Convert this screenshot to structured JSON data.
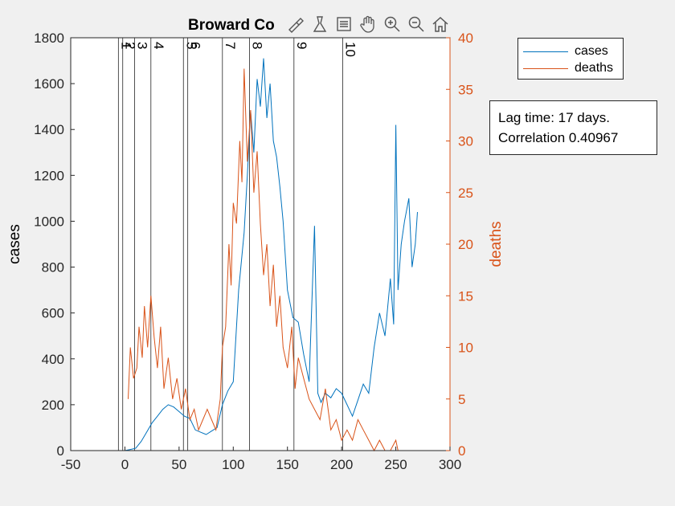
{
  "chart_data": {
    "type": "line",
    "title": "Broward Co",
    "xlim": [
      -50,
      300
    ],
    "ylim_left": [
      0,
      1800
    ],
    "ylim_right": [
      0,
      40
    ],
    "xticks": [
      -50,
      0,
      50,
      100,
      150,
      200,
      250,
      300
    ],
    "yticks_left": [
      0,
      200,
      400,
      600,
      800,
      1000,
      1200,
      1400,
      1600,
      1800
    ],
    "yticks_right": [
      0,
      5,
      10,
      15,
      20,
      25,
      30,
      35,
      40
    ],
    "ylabel_left": "cases",
    "ylabel_right": "deaths",
    "legend_position": "top-right outside",
    "grid": false,
    "colors": {
      "cases": "#0072bd",
      "deaths": "#d95319",
      "axis_right": "#d95319"
    },
    "event_lines": [
      {
        "label": "1",
        "x": -6
      },
      {
        "label": "2",
        "x": -2
      },
      {
        "label": "3",
        "x": 9
      },
      {
        "label": "4",
        "x": 24
      },
      {
        "label": "5",
        "x": 54
      },
      {
        "label": "6",
        "x": 58
      },
      {
        "label": "7",
        "x": 90
      },
      {
        "label": "8",
        "x": 115
      },
      {
        "label": "9",
        "x": 156
      },
      {
        "label": "10",
        "x": 201
      }
    ],
    "series": [
      {
        "name": "cases",
        "axis": "left",
        "x": [
          0,
          5,
          10,
          15,
          20,
          25,
          30,
          35,
          40,
          45,
          50,
          55,
          60,
          65,
          70,
          75,
          80,
          85,
          90,
          95,
          100,
          105,
          110,
          113,
          116,
          119,
          122,
          125,
          128,
          131,
          134,
          137,
          140,
          143,
          146,
          150,
          155,
          160,
          165,
          170,
          175,
          178,
          181,
          185,
          190,
          195,
          200,
          205,
          210,
          215,
          220,
          225,
          230,
          235,
          240,
          245,
          248,
          250,
          252,
          255,
          258,
          262,
          265,
          268,
          270
        ],
        "y": [
          0,
          5,
          10,
          40,
          80,
          120,
          150,
          180,
          200,
          190,
          170,
          150,
          140,
          90,
          80,
          70,
          85,
          100,
          200,
          260,
          300,
          700,
          950,
          1200,
          1480,
          1300,
          1620,
          1500,
          1710,
          1450,
          1600,
          1350,
          1280,
          1150,
          1000,
          700,
          580,
          560,
          420,
          300,
          980,
          250,
          210,
          250,
          230,
          270,
          250,
          200,
          150,
          220,
          290,
          250,
          450,
          600,
          500,
          750,
          550,
          1420,
          700,
          900,
          1000,
          1100,
          800,
          900,
          1040
        ]
      },
      {
        "name": "deaths",
        "axis": "right",
        "x": [
          3,
          5,
          8,
          11,
          13,
          16,
          18,
          21,
          24,
          27,
          30,
          33,
          36,
          40,
          44,
          48,
          52,
          56,
          60,
          64,
          68,
          72,
          76,
          80,
          84,
          88,
          90,
          93,
          96,
          98,
          100,
          103,
          106,
          108,
          110,
          113,
          116,
          119,
          122,
          125,
          128,
          131,
          134,
          137,
          140,
          143,
          146,
          150,
          154,
          157,
          160,
          165,
          170,
          175,
          180,
          185,
          190,
          195,
          200,
          205,
          210,
          215,
          220,
          225,
          230,
          235,
          240,
          245,
          250,
          252
        ],
        "y": [
          5,
          10,
          7,
          8,
          12,
          9,
          14,
          10,
          15,
          11,
          8,
          12,
          6,
          9,
          5,
          7,
          4,
          6,
          3,
          4,
          2,
          3,
          4,
          3,
          2,
          5,
          10,
          12,
          20,
          16,
          24,
          22,
          30,
          26,
          37,
          28,
          33,
          25,
          29,
          22,
          17,
          20,
          14,
          18,
          12,
          15,
          10,
          8,
          12,
          6,
          9,
          7,
          5,
          4,
          3,
          6,
          2,
          3,
          1,
          2,
          1,
          3,
          2,
          1,
          0,
          1,
          0,
          0,
          1,
          0
        ]
      }
    ]
  },
  "legend": {
    "entries": [
      {
        "label": "cases",
        "color": "#0072bd"
      },
      {
        "label": "deaths",
        "color": "#d95319"
      }
    ]
  },
  "annotation": {
    "line1": "Lag time: 17 days.",
    "line2": "Correlation 0.40967"
  },
  "toolbar": {
    "icons": [
      "brush-icon",
      "data-tip-icon",
      "legend-toggle-icon",
      "pan-hand-icon",
      "zoom-in-icon",
      "zoom-out-icon",
      "home-icon"
    ]
  }
}
